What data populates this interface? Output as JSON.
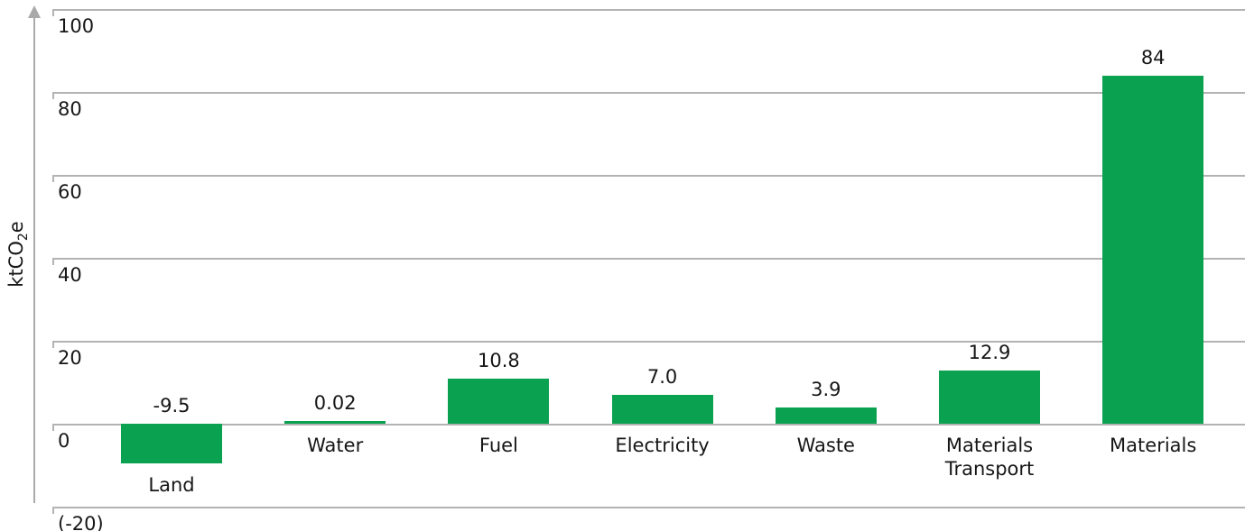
{
  "chart_data": {
    "type": "bar",
    "title": "",
    "categories": [
      "Land",
      "Water",
      "Fuel",
      "Electricity",
      "Waste",
      "Materials Transport",
      "Materials"
    ],
    "values": [
      -9.5,
      0.02,
      10.8,
      7.0,
      3.9,
      12.9,
      84
    ],
    "value_labels": [
      "-9.5",
      "0.02",
      "10.8",
      "7.0",
      "3.9",
      "12.9",
      "84"
    ],
    "xlabel": "",
    "ylabel": "ktCO2e",
    "ylabel_parts": {
      "prefix": "ktCO",
      "sub": "2",
      "suffix": "e"
    },
    "ylim": [
      -20,
      100
    ],
    "yticks": [
      100,
      80,
      60,
      40,
      20,
      0,
      -20
    ],
    "ytick_labels": [
      "100",
      "80",
      "60",
      "40",
      "20",
      "0",
      "(-20)"
    ],
    "grid": true,
    "legend": false,
    "bar_color": "#0aa150",
    "gridline_color": "#b3b3b3",
    "axis_color": "#a9a9a9",
    "text_color": "#161616"
  }
}
